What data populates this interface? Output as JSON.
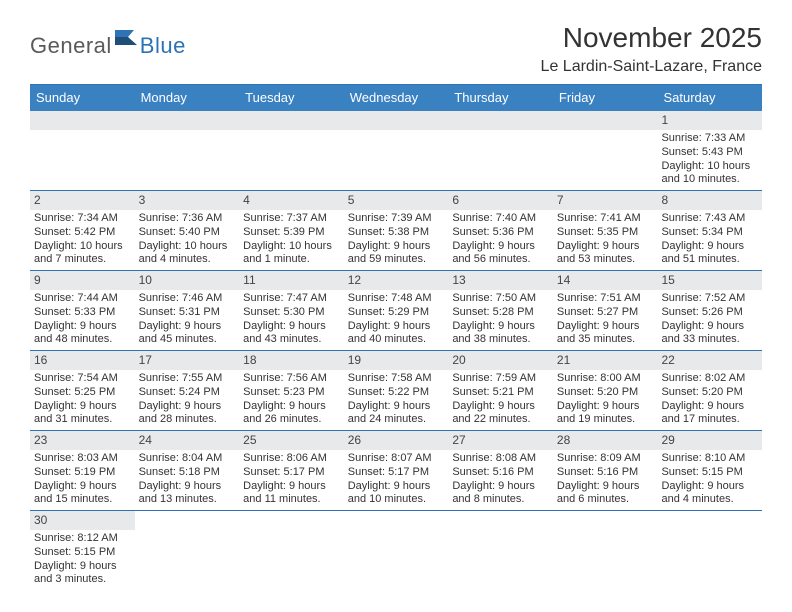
{
  "logo": {
    "general": "General",
    "blue": "Blue"
  },
  "title": "November 2025",
  "location": "Le Lardin-Saint-Lazare, France",
  "colors": {
    "header_bg": "#3a81c2",
    "border": "#2e74b5",
    "daynum_bg": "#e8e9ea",
    "text": "#333333",
    "logo_gray": "#5a5a5a",
    "logo_blue": "#2e74b5"
  },
  "day_headers": [
    "Sunday",
    "Monday",
    "Tuesday",
    "Wednesday",
    "Thursday",
    "Friday",
    "Saturday"
  ],
  "weeks": [
    [
      {
        "blank": true
      },
      {
        "blank": true
      },
      {
        "blank": true
      },
      {
        "blank": true
      },
      {
        "blank": true
      },
      {
        "blank": true
      },
      {
        "num": "1",
        "sunrise": "Sunrise: 7:33 AM",
        "sunset": "Sunset: 5:43 PM",
        "daylight": "Daylight: 10 hours and 10 minutes."
      }
    ],
    [
      {
        "num": "2",
        "sunrise": "Sunrise: 7:34 AM",
        "sunset": "Sunset: 5:42 PM",
        "daylight": "Daylight: 10 hours and 7 minutes."
      },
      {
        "num": "3",
        "sunrise": "Sunrise: 7:36 AM",
        "sunset": "Sunset: 5:40 PM",
        "daylight": "Daylight: 10 hours and 4 minutes."
      },
      {
        "num": "4",
        "sunrise": "Sunrise: 7:37 AM",
        "sunset": "Sunset: 5:39 PM",
        "daylight": "Daylight: 10 hours and 1 minute."
      },
      {
        "num": "5",
        "sunrise": "Sunrise: 7:39 AM",
        "sunset": "Sunset: 5:38 PM",
        "daylight": "Daylight: 9 hours and 59 minutes."
      },
      {
        "num": "6",
        "sunrise": "Sunrise: 7:40 AM",
        "sunset": "Sunset: 5:36 PM",
        "daylight": "Daylight: 9 hours and 56 minutes."
      },
      {
        "num": "7",
        "sunrise": "Sunrise: 7:41 AM",
        "sunset": "Sunset: 5:35 PM",
        "daylight": "Daylight: 9 hours and 53 minutes."
      },
      {
        "num": "8",
        "sunrise": "Sunrise: 7:43 AM",
        "sunset": "Sunset: 5:34 PM",
        "daylight": "Daylight: 9 hours and 51 minutes."
      }
    ],
    [
      {
        "num": "9",
        "sunrise": "Sunrise: 7:44 AM",
        "sunset": "Sunset: 5:33 PM",
        "daylight": "Daylight: 9 hours and 48 minutes."
      },
      {
        "num": "10",
        "sunrise": "Sunrise: 7:46 AM",
        "sunset": "Sunset: 5:31 PM",
        "daylight": "Daylight: 9 hours and 45 minutes."
      },
      {
        "num": "11",
        "sunrise": "Sunrise: 7:47 AM",
        "sunset": "Sunset: 5:30 PM",
        "daylight": "Daylight: 9 hours and 43 minutes."
      },
      {
        "num": "12",
        "sunrise": "Sunrise: 7:48 AM",
        "sunset": "Sunset: 5:29 PM",
        "daylight": "Daylight: 9 hours and 40 minutes."
      },
      {
        "num": "13",
        "sunrise": "Sunrise: 7:50 AM",
        "sunset": "Sunset: 5:28 PM",
        "daylight": "Daylight: 9 hours and 38 minutes."
      },
      {
        "num": "14",
        "sunrise": "Sunrise: 7:51 AM",
        "sunset": "Sunset: 5:27 PM",
        "daylight": "Daylight: 9 hours and 35 minutes."
      },
      {
        "num": "15",
        "sunrise": "Sunrise: 7:52 AM",
        "sunset": "Sunset: 5:26 PM",
        "daylight": "Daylight: 9 hours and 33 minutes."
      }
    ],
    [
      {
        "num": "16",
        "sunrise": "Sunrise: 7:54 AM",
        "sunset": "Sunset: 5:25 PM",
        "daylight": "Daylight: 9 hours and 31 minutes."
      },
      {
        "num": "17",
        "sunrise": "Sunrise: 7:55 AM",
        "sunset": "Sunset: 5:24 PM",
        "daylight": "Daylight: 9 hours and 28 minutes."
      },
      {
        "num": "18",
        "sunrise": "Sunrise: 7:56 AM",
        "sunset": "Sunset: 5:23 PM",
        "daylight": "Daylight: 9 hours and 26 minutes."
      },
      {
        "num": "19",
        "sunrise": "Sunrise: 7:58 AM",
        "sunset": "Sunset: 5:22 PM",
        "daylight": "Daylight: 9 hours and 24 minutes."
      },
      {
        "num": "20",
        "sunrise": "Sunrise: 7:59 AM",
        "sunset": "Sunset: 5:21 PM",
        "daylight": "Daylight: 9 hours and 22 minutes."
      },
      {
        "num": "21",
        "sunrise": "Sunrise: 8:00 AM",
        "sunset": "Sunset: 5:20 PM",
        "daylight": "Daylight: 9 hours and 19 minutes."
      },
      {
        "num": "22",
        "sunrise": "Sunrise: 8:02 AM",
        "sunset": "Sunset: 5:20 PM",
        "daylight": "Daylight: 9 hours and 17 minutes."
      }
    ],
    [
      {
        "num": "23",
        "sunrise": "Sunrise: 8:03 AM",
        "sunset": "Sunset: 5:19 PM",
        "daylight": "Daylight: 9 hours and 15 minutes."
      },
      {
        "num": "24",
        "sunrise": "Sunrise: 8:04 AM",
        "sunset": "Sunset: 5:18 PM",
        "daylight": "Daylight: 9 hours and 13 minutes."
      },
      {
        "num": "25",
        "sunrise": "Sunrise: 8:06 AM",
        "sunset": "Sunset: 5:17 PM",
        "daylight": "Daylight: 9 hours and 11 minutes."
      },
      {
        "num": "26",
        "sunrise": "Sunrise: 8:07 AM",
        "sunset": "Sunset: 5:17 PM",
        "daylight": "Daylight: 9 hours and 10 minutes."
      },
      {
        "num": "27",
        "sunrise": "Sunrise: 8:08 AM",
        "sunset": "Sunset: 5:16 PM",
        "daylight": "Daylight: 9 hours and 8 minutes."
      },
      {
        "num": "28",
        "sunrise": "Sunrise: 8:09 AM",
        "sunset": "Sunset: 5:16 PM",
        "daylight": "Daylight: 9 hours and 6 minutes."
      },
      {
        "num": "29",
        "sunrise": "Sunrise: 8:10 AM",
        "sunset": "Sunset: 5:15 PM",
        "daylight": "Daylight: 9 hours and 4 minutes."
      }
    ],
    [
      {
        "num": "30",
        "sunrise": "Sunrise: 8:12 AM",
        "sunset": "Sunset: 5:15 PM",
        "daylight": "Daylight: 9 hours and 3 minutes."
      },
      {
        "blank": true
      },
      {
        "blank": true
      },
      {
        "blank": true
      },
      {
        "blank": true
      },
      {
        "blank": true
      },
      {
        "blank": true
      }
    ]
  ]
}
